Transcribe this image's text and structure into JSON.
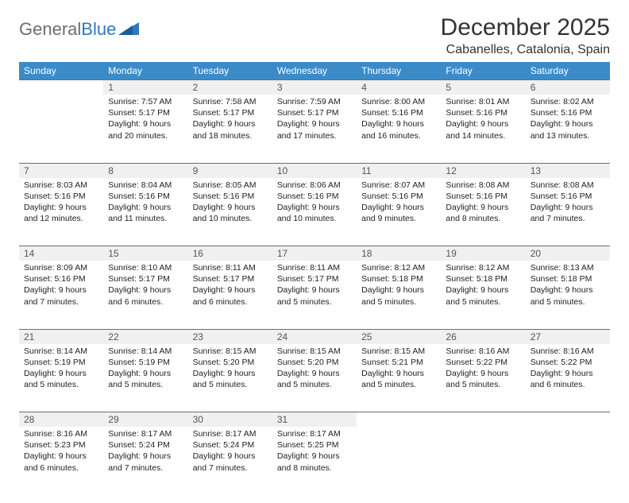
{
  "brand": {
    "part1": "General",
    "part2": "Blue"
  },
  "title": "December 2025",
  "location": "Cabanelles, Catalonia, Spain",
  "colors": {
    "header_bg": "#3b8bc9",
    "header_fg": "#ffffff",
    "daynum_bg": "#f0f0f0",
    "rule": "#6d6d6d",
    "brand_blue": "#2f78bd",
    "brand_grey": "#6d6d6d"
  },
  "weekdays": [
    "Sunday",
    "Monday",
    "Tuesday",
    "Wednesday",
    "Thursday",
    "Friday",
    "Saturday"
  ],
  "weeks": [
    {
      "nums": [
        "",
        "1",
        "2",
        "3",
        "4",
        "5",
        "6"
      ],
      "details": [
        "",
        "Sunrise: 7:57 AM\nSunset: 5:17 PM\nDaylight: 9 hours and 20 minutes.",
        "Sunrise: 7:58 AM\nSunset: 5:17 PM\nDaylight: 9 hours and 18 minutes.",
        "Sunrise: 7:59 AM\nSunset: 5:17 PM\nDaylight: 9 hours and 17 minutes.",
        "Sunrise: 8:00 AM\nSunset: 5:16 PM\nDaylight: 9 hours and 16 minutes.",
        "Sunrise: 8:01 AM\nSunset: 5:16 PM\nDaylight: 9 hours and 14 minutes.",
        "Sunrise: 8:02 AM\nSunset: 5:16 PM\nDaylight: 9 hours and 13 minutes."
      ]
    },
    {
      "nums": [
        "7",
        "8",
        "9",
        "10",
        "11",
        "12",
        "13"
      ],
      "details": [
        "Sunrise: 8:03 AM\nSunset: 5:16 PM\nDaylight: 9 hours and 12 minutes.",
        "Sunrise: 8:04 AM\nSunset: 5:16 PM\nDaylight: 9 hours and 11 minutes.",
        "Sunrise: 8:05 AM\nSunset: 5:16 PM\nDaylight: 9 hours and 10 minutes.",
        "Sunrise: 8:06 AM\nSunset: 5:16 PM\nDaylight: 9 hours and 10 minutes.",
        "Sunrise: 8:07 AM\nSunset: 5:16 PM\nDaylight: 9 hours and 9 minutes.",
        "Sunrise: 8:08 AM\nSunset: 5:16 PM\nDaylight: 9 hours and 8 minutes.",
        "Sunrise: 8:08 AM\nSunset: 5:16 PM\nDaylight: 9 hours and 7 minutes."
      ]
    },
    {
      "nums": [
        "14",
        "15",
        "16",
        "17",
        "18",
        "19",
        "20"
      ],
      "details": [
        "Sunrise: 8:09 AM\nSunset: 5:16 PM\nDaylight: 9 hours and 7 minutes.",
        "Sunrise: 8:10 AM\nSunset: 5:17 PM\nDaylight: 9 hours and 6 minutes.",
        "Sunrise: 8:11 AM\nSunset: 5:17 PM\nDaylight: 9 hours and 6 minutes.",
        "Sunrise: 8:11 AM\nSunset: 5:17 PM\nDaylight: 9 hours and 5 minutes.",
        "Sunrise: 8:12 AM\nSunset: 5:18 PM\nDaylight: 9 hours and 5 minutes.",
        "Sunrise: 8:12 AM\nSunset: 5:18 PM\nDaylight: 9 hours and 5 minutes.",
        "Sunrise: 8:13 AM\nSunset: 5:18 PM\nDaylight: 9 hours and 5 minutes."
      ]
    },
    {
      "nums": [
        "21",
        "22",
        "23",
        "24",
        "25",
        "26",
        "27"
      ],
      "details": [
        "Sunrise: 8:14 AM\nSunset: 5:19 PM\nDaylight: 9 hours and 5 minutes.",
        "Sunrise: 8:14 AM\nSunset: 5:19 PM\nDaylight: 9 hours and 5 minutes.",
        "Sunrise: 8:15 AM\nSunset: 5:20 PM\nDaylight: 9 hours and 5 minutes.",
        "Sunrise: 8:15 AM\nSunset: 5:20 PM\nDaylight: 9 hours and 5 minutes.",
        "Sunrise: 8:15 AM\nSunset: 5:21 PM\nDaylight: 9 hours and 5 minutes.",
        "Sunrise: 8:16 AM\nSunset: 5:22 PM\nDaylight: 9 hours and 5 minutes.",
        "Sunrise: 8:16 AM\nSunset: 5:22 PM\nDaylight: 9 hours and 6 minutes."
      ]
    },
    {
      "nums": [
        "28",
        "29",
        "30",
        "31",
        "",
        "",
        ""
      ],
      "details": [
        "Sunrise: 8:16 AM\nSunset: 5:23 PM\nDaylight: 9 hours and 6 minutes.",
        "Sunrise: 8:17 AM\nSunset: 5:24 PM\nDaylight: 9 hours and 7 minutes.",
        "Sunrise: 8:17 AM\nSunset: 5:24 PM\nDaylight: 9 hours and 7 minutes.",
        "Sunrise: 8:17 AM\nSunset: 5:25 PM\nDaylight: 9 hours and 8 minutes.",
        "",
        "",
        ""
      ]
    }
  ]
}
